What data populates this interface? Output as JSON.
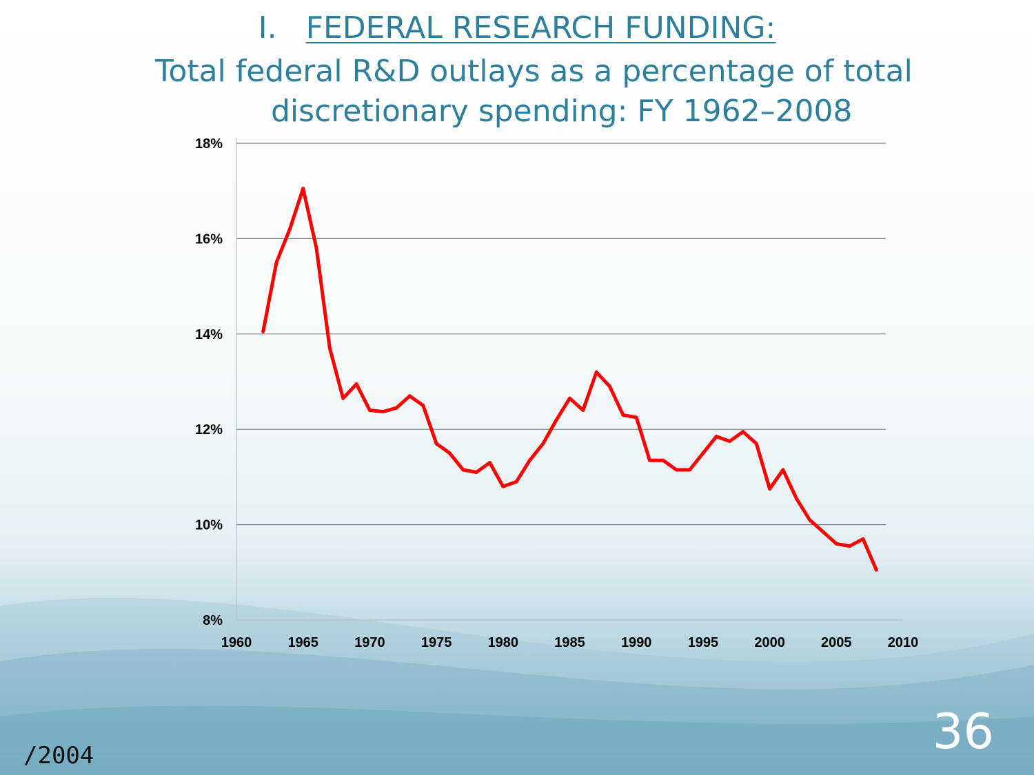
{
  "slide": {
    "heading_number": "I.",
    "heading": "FEDERAL RESEARCH FUNDING:",
    "subtitle_line1": "Total federal R&D outlays as a percentage of total",
    "subtitle_line2": "discretionary spending: FY 1962–2008",
    "page_number": "36",
    "footer_text": "/2004"
  },
  "colors": {
    "title": "#2e7f9c",
    "series_line": "#ff0000",
    "gridline": "#7f7f7f"
  },
  "chart_data": {
    "type": "line",
    "title": "",
    "xlabel": "",
    "ylabel": "",
    "xlim": [
      1960,
      2010
    ],
    "ylim": [
      8,
      18
    ],
    "x_ticks": [
      1960,
      1965,
      1970,
      1975,
      1980,
      1985,
      1990,
      1995,
      2000,
      2005,
      2010
    ],
    "x_tick_labels": [
      "1960",
      "1965",
      "1970",
      "1975",
      "1980",
      "1985",
      "1990",
      "1995",
      "2000",
      "2005",
      "2010"
    ],
    "y_ticks": [
      8,
      10,
      12,
      14,
      16,
      18
    ],
    "y_tick_labels": [
      "8%",
      "10%",
      "12%",
      "14%",
      "16%",
      "18%"
    ],
    "grid": true,
    "legend": "none",
    "series": [
      {
        "x": [
          1962,
          1963,
          1964,
          1965,
          1966,
          1967,
          1968,
          1969,
          1970,
          1971,
          1972,
          1973,
          1974,
          1975,
          1976,
          1977,
          1978,
          1979,
          1980,
          1981,
          1982,
          1983,
          1984,
          1985,
          1986,
          1987,
          1988,
          1989,
          1990,
          1991,
          1992,
          1993,
          1994,
          1995,
          1996,
          1997,
          1998,
          1999,
          2000,
          2001,
          2002,
          2003,
          2004,
          2005,
          2006,
          2007,
          2008
        ],
        "values": [
          14.05,
          15.5,
          16.2,
          17.05,
          15.8,
          13.7,
          12.65,
          12.95,
          12.4,
          12.37,
          12.45,
          12.7,
          12.5,
          11.7,
          11.5,
          11.15,
          11.1,
          11.3,
          10.8,
          10.9,
          11.35,
          11.7,
          12.2,
          12.65,
          12.4,
          13.2,
          12.9,
          12.3,
          12.25,
          11.35,
          11.35,
          11.15,
          11.15,
          11.5,
          11.85,
          11.75,
          11.95,
          11.7,
          10.75,
          11.15,
          10.55,
          10.1,
          9.85,
          9.6,
          9.55,
          9.7,
          9.05
        ]
      }
    ]
  }
}
